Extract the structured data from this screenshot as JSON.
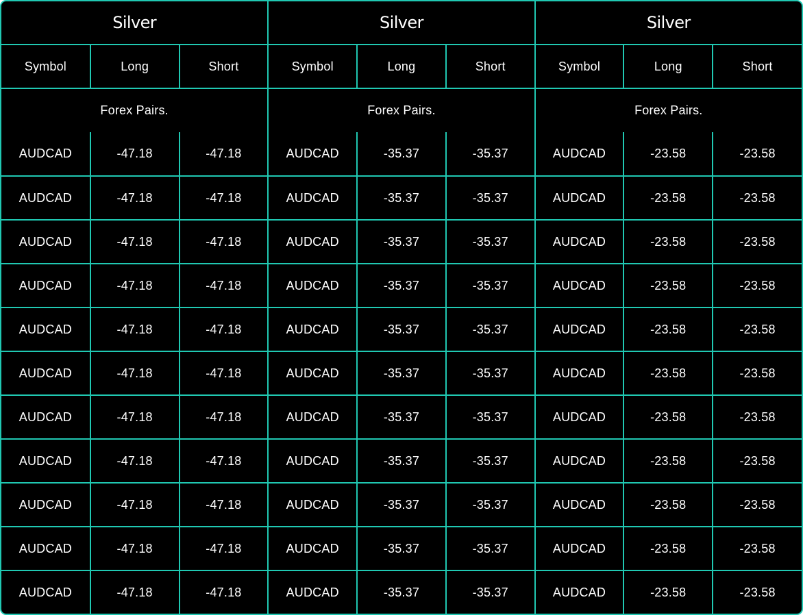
{
  "colors": {
    "background": "#000000",
    "grid": "#20c8b2",
    "text": "#ffffff"
  },
  "groups": [
    {
      "title": "Silver",
      "headers": [
        "Symbol",
        "Long",
        "Short"
      ],
      "category": "Forex Pairs.",
      "rows": [
        [
          "AUDCAD",
          "-47.18",
          "-47.18"
        ],
        [
          "AUDCAD",
          "-47.18",
          "-47.18"
        ],
        [
          "AUDCAD",
          "-47.18",
          "-47.18"
        ],
        [
          "AUDCAD",
          "-47.18",
          "-47.18"
        ],
        [
          "AUDCAD",
          "-47.18",
          "-47.18"
        ],
        [
          "AUDCAD",
          "-47.18",
          "-47.18"
        ],
        [
          "AUDCAD",
          "-47.18",
          "-47.18"
        ],
        [
          "AUDCAD",
          "-47.18",
          "-47.18"
        ],
        [
          "AUDCAD",
          "-47.18",
          "-47.18"
        ],
        [
          "AUDCAD",
          "-47.18",
          "-47.18"
        ],
        [
          "AUDCAD",
          "-47.18",
          "-47.18"
        ]
      ]
    },
    {
      "title": "Silver",
      "headers": [
        "Symbol",
        "Long",
        "Short"
      ],
      "category": "Forex Pairs.",
      "rows": [
        [
          "AUDCAD",
          "-35.37",
          "-35.37"
        ],
        [
          "AUDCAD",
          "-35.37",
          "-35.37"
        ],
        [
          "AUDCAD",
          "-35.37",
          "-35.37"
        ],
        [
          "AUDCAD",
          "-35.37",
          "-35.37"
        ],
        [
          "AUDCAD",
          "-35.37",
          "-35.37"
        ],
        [
          "AUDCAD",
          "-35.37",
          "-35.37"
        ],
        [
          "AUDCAD",
          "-35.37",
          "-35.37"
        ],
        [
          "AUDCAD",
          "-35.37",
          "-35.37"
        ],
        [
          "AUDCAD",
          "-35.37",
          "-35.37"
        ],
        [
          "AUDCAD",
          "-35.37",
          "-35.37"
        ],
        [
          "AUDCAD",
          "-35.37",
          "-35.37"
        ]
      ]
    },
    {
      "title": "Silver",
      "headers": [
        "Symbol",
        "Long",
        "Short"
      ],
      "category": "Forex Pairs.",
      "rows": [
        [
          "AUDCAD",
          "-23.58",
          "-23.58"
        ],
        [
          "AUDCAD",
          "-23.58",
          "-23.58"
        ],
        [
          "AUDCAD",
          "-23.58",
          "-23.58"
        ],
        [
          "AUDCAD",
          "-23.58",
          "-23.58"
        ],
        [
          "AUDCAD",
          "-23.58",
          "-23.58"
        ],
        [
          "AUDCAD",
          "-23.58",
          "-23.58"
        ],
        [
          "AUDCAD",
          "-23.58",
          "-23.58"
        ],
        [
          "AUDCAD",
          "-23.58",
          "-23.58"
        ],
        [
          "AUDCAD",
          "-23.58",
          "-23.58"
        ],
        [
          "AUDCAD",
          "-23.58",
          "-23.58"
        ],
        [
          "AUDCAD",
          "-23.58",
          "-23.58"
        ]
      ]
    }
  ]
}
